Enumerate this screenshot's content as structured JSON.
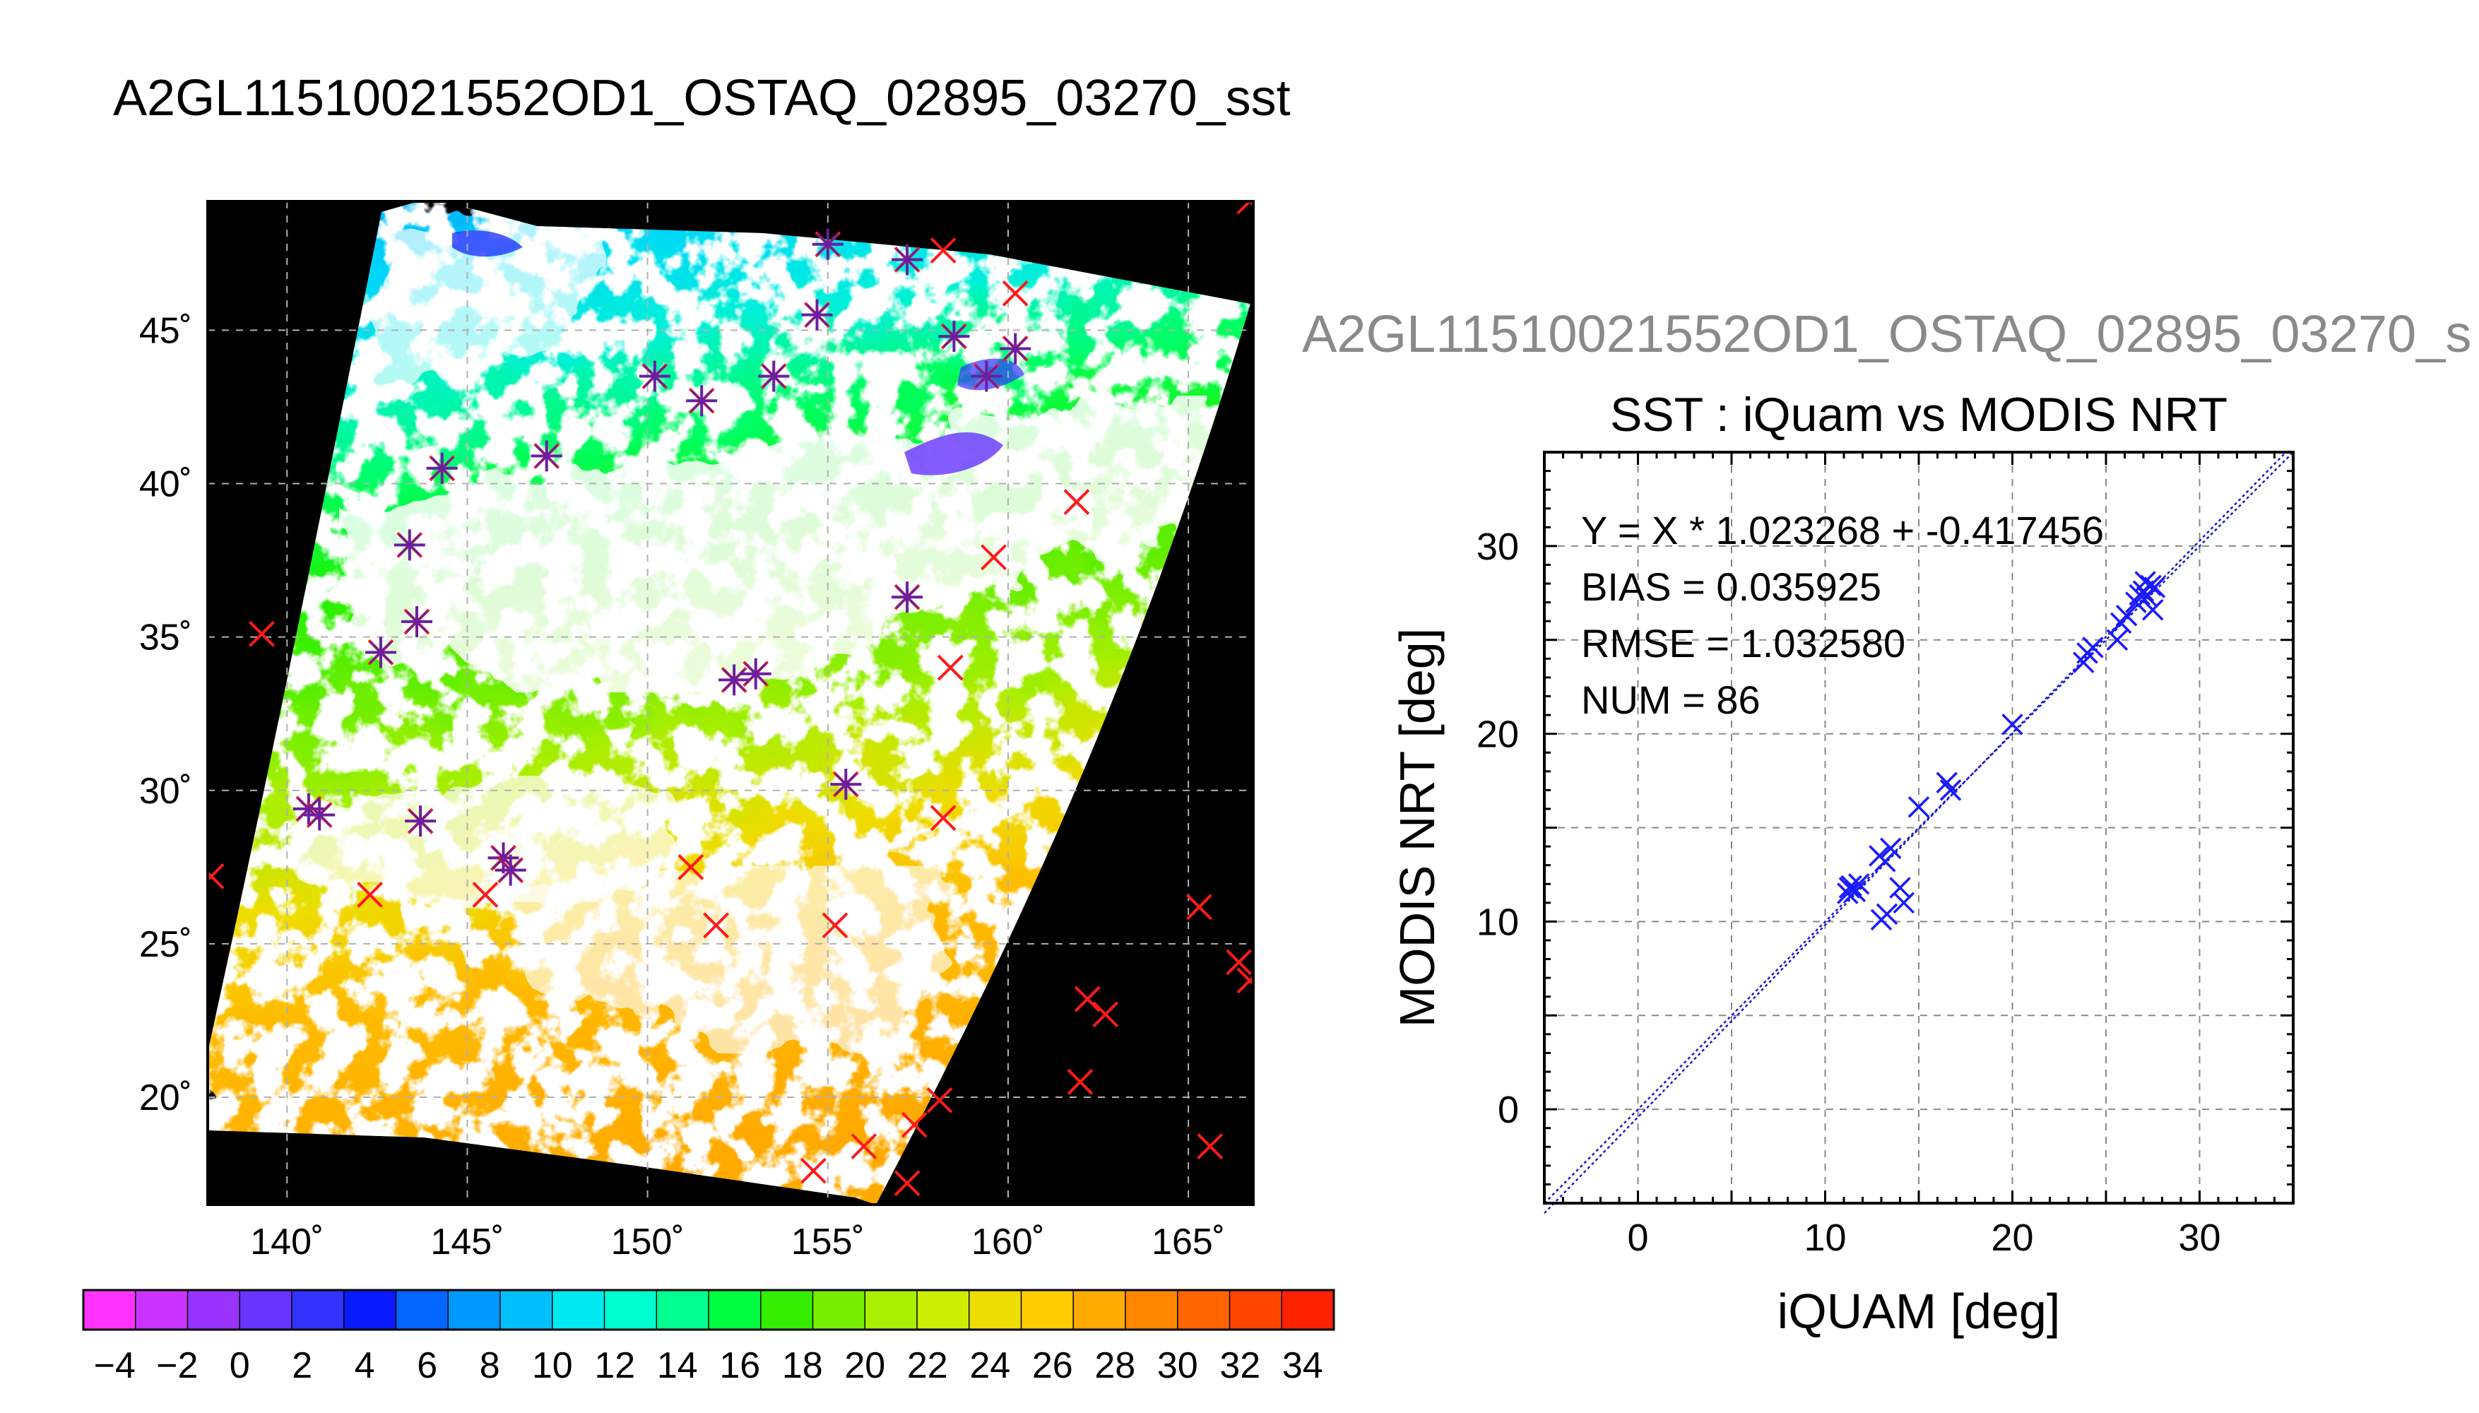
{
  "header": {
    "title": "A2GL11510021552OD1_OSTAQ_02895_03270_sst",
    "subtitle": "A2GL11510021552OD1_OSTAQ_02895_03270_s"
  },
  "colors": {
    "land_background": "#000000",
    "scatter_marker": "#1a1aff",
    "iquam_marker": "#ff1a1a",
    "fit_line": "#1a1acc"
  },
  "chart_data": [
    {
      "type": "heatmap",
      "title": "",
      "x_tick_labels": [
        "140˚",
        "145˚",
        "150˚",
        "155˚",
        "160˚",
        "165˚"
      ],
      "y_tick_labels": [
        "20˚",
        "25˚",
        "30˚",
        "35˚",
        "40˚",
        "45˚"
      ],
      "x_ticks": [
        140,
        145,
        150,
        155,
        160,
        165
      ],
      "y_ticks": [
        20,
        25,
        30,
        35,
        40,
        45
      ],
      "xlim": [
        137.8,
        166.8
      ],
      "ylim": [
        16.5,
        49.2
      ],
      "grid": true,
      "colorbar": {
        "min": -5,
        "max": 35,
        "tick_labels": [
          "-4",
          "-2",
          "0",
          "2",
          "4",
          "6",
          "8",
          "10",
          "12",
          "14",
          "16",
          "18",
          "20",
          "22",
          "24",
          "26",
          "28",
          "30",
          "32",
          "34"
        ],
        "colors": [
          "#ff33ff",
          "#c933ff",
          "#9933ff",
          "#6633ff",
          "#3333ff",
          "#0a1aff",
          "#0066ff",
          "#0099ff",
          "#00c0ff",
          "#00e8f0",
          "#00ffd0",
          "#00ff90",
          "#00ff40",
          "#33ee00",
          "#77ee00",
          "#aaee00",
          "#ccee00",
          "#eedd00",
          "#ffcc00",
          "#ffaa00",
          "#ff8800",
          "#ff6600",
          "#ff4400",
          "#ff2200"
        ]
      },
      "markers": [
        {
          "lon": 155.0,
          "lat": 47.8,
          "both": true
        },
        {
          "lon": 157.2,
          "lat": 47.3,
          "both": true
        },
        {
          "lon": 158.2,
          "lat": 47.6,
          "both": false
        },
        {
          "lon": 160.2,
          "lat": 46.2,
          "both": false
        },
        {
          "lon": 154.7,
          "lat": 45.5,
          "both": true
        },
        {
          "lon": 158.5,
          "lat": 44.8,
          "both": true
        },
        {
          "lon": 160.2,
          "lat": 44.4,
          "both": true
        },
        {
          "lon": 159.4,
          "lat": 43.5,
          "both": true
        },
        {
          "lon": 150.2,
          "lat": 43.5,
          "both": true
        },
        {
          "lon": 153.5,
          "lat": 43.5,
          "both": true
        },
        {
          "lon": 151.5,
          "lat": 42.7,
          "both": true
        },
        {
          "lon": 147.2,
          "lat": 40.9,
          "both": true
        },
        {
          "lon": 144.3,
          "lat": 40.5,
          "both": true
        },
        {
          "lon": 161.9,
          "lat": 39.4,
          "both": false
        },
        {
          "lon": 143.4,
          "lat": 38.0,
          "both": true
        },
        {
          "lon": 159.6,
          "lat": 37.6,
          "both": false
        },
        {
          "lon": 157.2,
          "lat": 36.3,
          "both": true
        },
        {
          "lon": 143.6,
          "lat": 35.5,
          "both": true
        },
        {
          "lon": 139.3,
          "lat": 35.1,
          "both": false
        },
        {
          "lon": 142.6,
          "lat": 34.5,
          "both": true
        },
        {
          "lon": 158.4,
          "lat": 34.0,
          "both": false
        },
        {
          "lon": 152.4,
          "lat": 33.6,
          "both": true
        },
        {
          "lon": 153.0,
          "lat": 33.8,
          "both": true
        },
        {
          "lon": 155.5,
          "lat": 30.2,
          "both": true
        },
        {
          "lon": 140.6,
          "lat": 29.4,
          "both": true
        },
        {
          "lon": 140.9,
          "lat": 29.2,
          "both": true
        },
        {
          "lon": 143.7,
          "lat": 29.0,
          "both": true
        },
        {
          "lon": 158.2,
          "lat": 29.1,
          "both": false
        },
        {
          "lon": 146.0,
          "lat": 27.8,
          "both": true
        },
        {
          "lon": 146.2,
          "lat": 27.4,
          "both": true
        },
        {
          "lon": 137.9,
          "lat": 27.2,
          "both": false
        },
        {
          "lon": 151.2,
          "lat": 27.5,
          "both": false
        },
        {
          "lon": 142.3,
          "lat": 26.6,
          "both": false
        },
        {
          "lon": 145.5,
          "lat": 26.6,
          "both": false
        },
        {
          "lon": 165.3,
          "lat": 26.2,
          "both": false
        },
        {
          "lon": 151.9,
          "lat": 25.6,
          "both": false
        },
        {
          "lon": 155.2,
          "lat": 25.6,
          "both": false
        },
        {
          "lon": 166.4,
          "lat": 24.4,
          "both": false
        },
        {
          "lon": 166.7,
          "lat": 23.8,
          "both": false
        },
        {
          "lon": 162.2,
          "lat": 23.2,
          "both": false
        },
        {
          "lon": 162.7,
          "lat": 22.7,
          "both": false
        },
        {
          "lon": 162.0,
          "lat": 20.5,
          "both": false
        },
        {
          "lon": 158.1,
          "lat": 19.9,
          "both": false
        },
        {
          "lon": 157.4,
          "lat": 19.1,
          "both": false
        },
        {
          "lon": 165.6,
          "lat": 18.4,
          "both": false
        },
        {
          "lon": 156.0,
          "lat": 18.4,
          "both": false
        },
        {
          "lon": 154.6,
          "lat": 17.6,
          "both": false
        },
        {
          "lon": 157.2,
          "lat": 17.2,
          "both": false
        },
        {
          "lon": 166.7,
          "lat": 49.2,
          "both": false
        }
      ]
    },
    {
      "type": "scatter",
      "title": "SST : iQuam vs MODIS NRT",
      "xlabel": "iQUAM [deg]",
      "ylabel": "MODIS NRT [deg]",
      "xlim": [
        -5,
        35
      ],
      "ylim": [
        -5,
        35
      ],
      "x_ticks": [
        0,
        10,
        20,
        30
      ],
      "y_ticks": [
        0,
        10,
        20,
        30
      ],
      "tick_labels": [
        "0",
        "10",
        "20",
        "30"
      ],
      "grid": true,
      "annotations": [
        "Y = X * 1.023268 + -0.417456",
        "BIAS = 0.035925",
        "RMSE = 1.032580",
        "NUM = 86"
      ],
      "fit": {
        "slope": 1.023268,
        "intercept": -0.417456
      },
      "points": [
        {
          "x": 11.2,
          "y": 11.5
        },
        {
          "x": 11.4,
          "y": 11.9
        },
        {
          "x": 11.6,
          "y": 11.6
        },
        {
          "x": 11.3,
          "y": 11.8
        },
        {
          "x": 11.8,
          "y": 12.0
        },
        {
          "x": 12.9,
          "y": 13.5
        },
        {
          "x": 13.2,
          "y": 13.2
        },
        {
          "x": 13.5,
          "y": 13.9
        },
        {
          "x": 13.0,
          "y": 10.1
        },
        {
          "x": 13.3,
          "y": 10.4
        },
        {
          "x": 14.0,
          "y": 11.8
        },
        {
          "x": 14.2,
          "y": 11.0
        },
        {
          "x": 15.0,
          "y": 16.1
        },
        {
          "x": 16.5,
          "y": 17.4
        },
        {
          "x": 16.7,
          "y": 17.0
        },
        {
          "x": 20.0,
          "y": 20.5
        },
        {
          "x": 23.8,
          "y": 23.8
        },
        {
          "x": 24.0,
          "y": 24.3
        },
        {
          "x": 24.3,
          "y": 24.6
        },
        {
          "x": 25.6,
          "y": 25.0
        },
        {
          "x": 25.8,
          "y": 25.9
        },
        {
          "x": 26.1,
          "y": 26.3
        },
        {
          "x": 26.6,
          "y": 27.0
        },
        {
          "x": 26.8,
          "y": 27.4
        },
        {
          "x": 27.0,
          "y": 27.6
        },
        {
          "x": 27.2,
          "y": 27.3
        },
        {
          "x": 27.4,
          "y": 27.9
        },
        {
          "x": 27.6,
          "y": 27.8
        },
        {
          "x": 27.5,
          "y": 26.6
        },
        {
          "x": 27.1,
          "y": 28.1
        }
      ]
    }
  ]
}
